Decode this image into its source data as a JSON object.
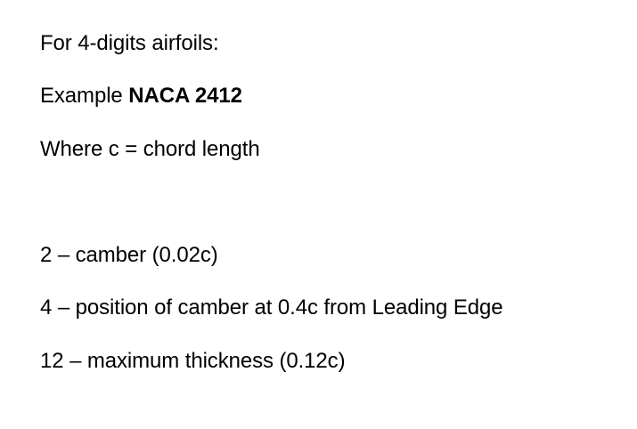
{
  "heading": "For 4-digits airfoils:",
  "example": {
    "prefix": "Example ",
    "designation": "NACA 2412"
  },
  "chord_note": "Where c = chord length",
  "digits": [
    "2 – camber (0.02c)",
    "4 – position of camber at 0.4c from Leading Edge",
    "12 – maximum thickness (0.12c)"
  ]
}
